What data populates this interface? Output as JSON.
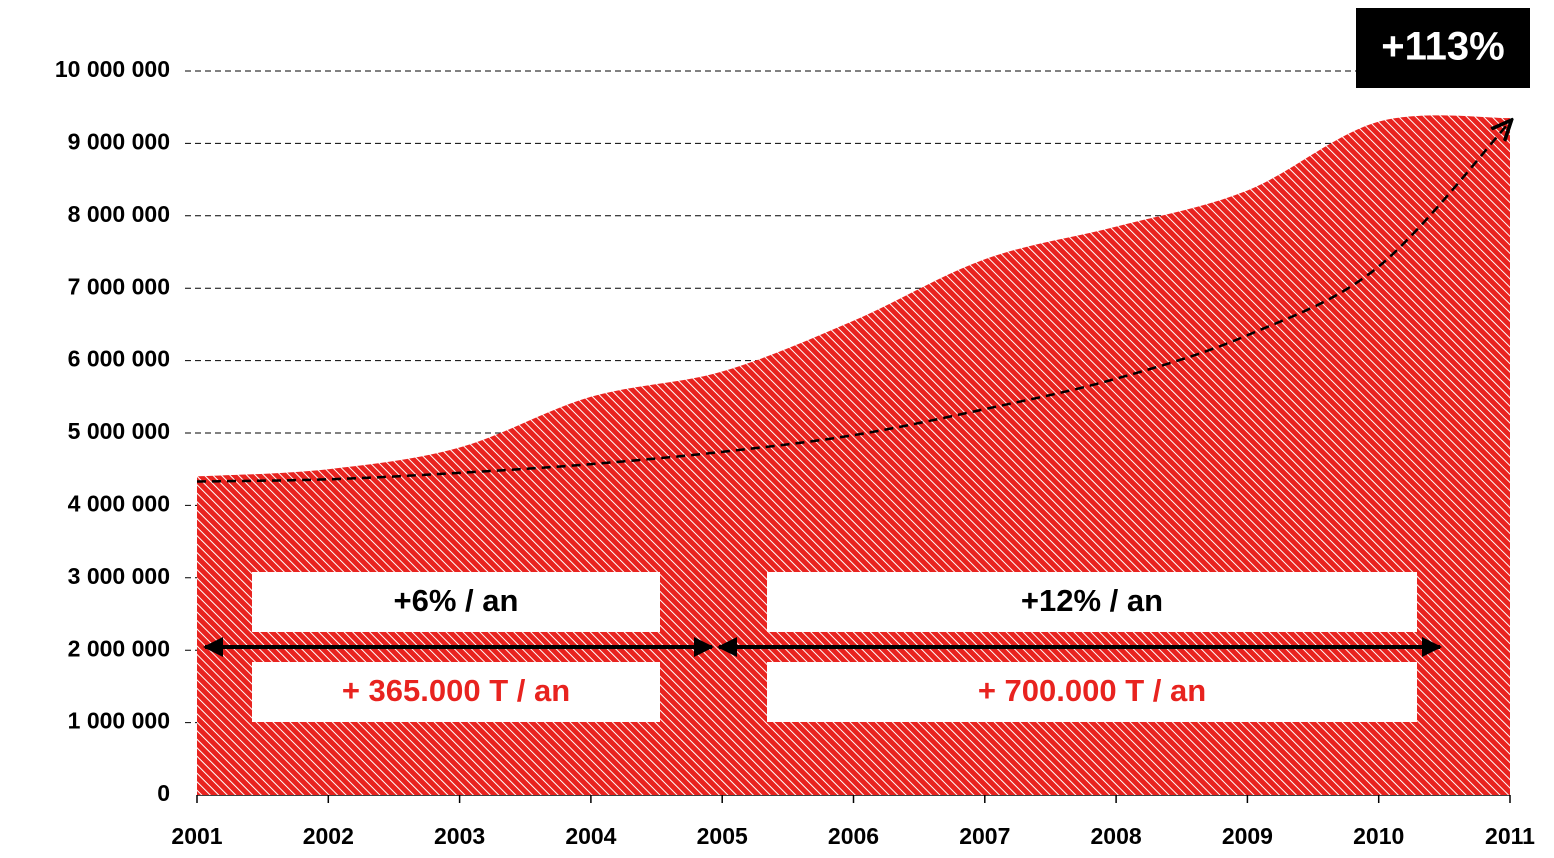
{
  "chart_data": {
    "type": "area",
    "categories": [
      "2001",
      "2002",
      "2003",
      "2004",
      "2005",
      "2006",
      "2007",
      "2008",
      "2009",
      "2010",
      "2011"
    ],
    "series": [
      {
        "color": "#e8231f",
        "values": [
          4400000,
          4500000,
          4800000,
          5500000,
          5850000,
          6550000,
          7400000,
          7850000,
          8350000,
          9300000,
          9350000
        ]
      },
      {
        "color": "#000000",
        "style": "dashed",
        "values": [
          4330000,
          4360000,
          4450000,
          4570000,
          4740000,
          4970000,
          5330000,
          5750000,
          6350000,
          7300000,
          9300000
        ]
      }
    ],
    "ylim": [
      0,
      10000000
    ],
    "yticks": [
      0,
      {
        "value": 1000000,
        "label": "1 000 000"
      },
      {
        "value": 2000000,
        "label": "2 000 000"
      },
      {
        "value": 3000000,
        "label": "3 000 000"
      },
      {
        "value": 4000000,
        "label": "4 000 000"
      },
      {
        "value": 5000000,
        "label": "5 000 000"
      },
      {
        "value": 6000000,
        "label": "6 000 000"
      },
      {
        "value": 7000000,
        "label": "7 000 000"
      },
      {
        "value": 8000000,
        "label": "8 000 000"
      },
      {
        "value": 9000000,
        "label": "9 000 000"
      },
      {
        "value": 10000000,
        "label": "10 000 000"
      }
    ],
    "grid": true,
    "annotations": [
      "+113%",
      "+6% / an",
      "+ 365.000 T / an",
      "+12% / an",
      "+ 700.000 T / an"
    ]
  }
}
